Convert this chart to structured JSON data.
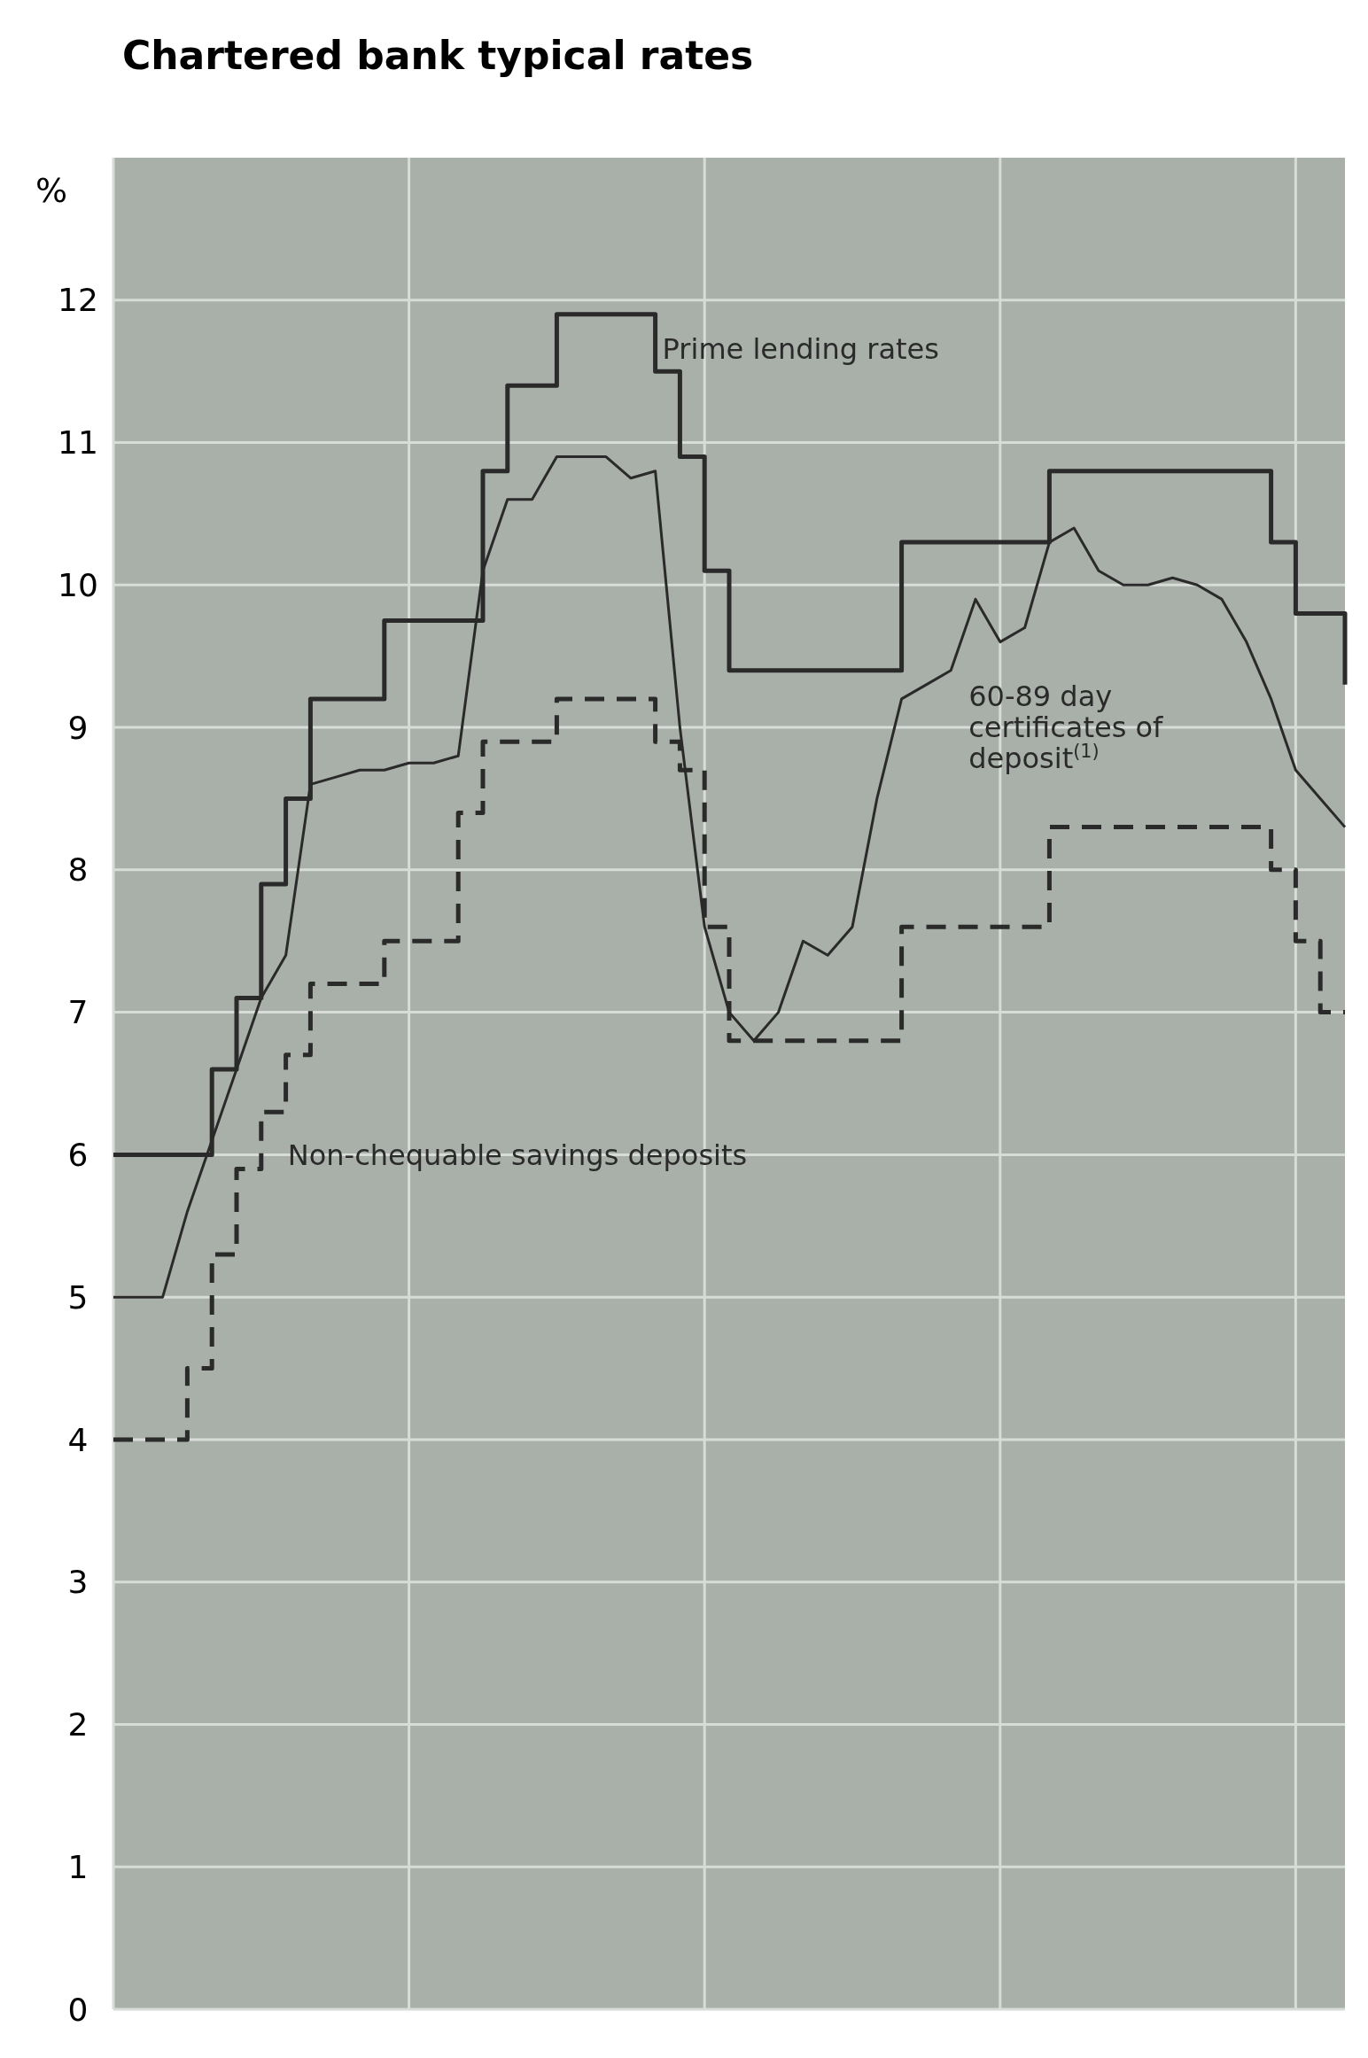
{
  "chart_data": {
    "type": "line",
    "title": "Chartered bank typical rates",
    "ylabel": "%",
    "categories": [
      null,
      null,
      null,
      null,
      null,
      null,
      null,
      null,
      null,
      null,
      null,
      null,
      null,
      null,
      null,
      null,
      null,
      null,
      null,
      null,
      null,
      null,
      null,
      null,
      null,
      null,
      null,
      null,
      null,
      null,
      null,
      null,
      null,
      null,
      null,
      null,
      null,
      null,
      null,
      null,
      null,
      null,
      null,
      null,
      null,
      null,
      null,
      null,
      null,
      null,
      null
    ],
    "ylim": [
      0,
      13
    ],
    "yticks": [
      0,
      1,
      2,
      3,
      4,
      5,
      6,
      7,
      8,
      9,
      10,
      11,
      12
    ],
    "grid": true,
    "series": [
      {
        "name": "Prime lending rates",
        "type": "step",
        "color": "#2a2a2a",
        "line_style": "solid",
        "values": [
          6.0,
          6.0,
          6.0,
          6.0,
          6.6,
          7.1,
          7.9,
          8.5,
          9.2,
          9.2,
          9.2,
          9.75,
          9.75,
          9.75,
          9.75,
          10.8,
          11.4,
          11.4,
          11.9,
          11.9,
          11.9,
          11.9,
          11.5,
          10.9,
          10.1,
          9.4,
          9.4,
          9.4,
          9.4,
          9.4,
          9.4,
          9.4,
          10.3,
          10.3,
          10.3,
          10.3,
          10.3,
          10.3,
          10.8,
          10.8,
          10.8,
          10.8,
          10.8,
          10.8,
          10.8,
          10.8,
          10.8,
          10.3,
          9.8,
          9.8,
          9.3
        ]
      },
      {
        "name": "60-89 day certificates of deposit$^{(1)}$",
        "type": "line",
        "color": "#2a2a2a",
        "line_style": "solid",
        "values": [
          5.0,
          5.0,
          5.0,
          5.6,
          6.1,
          6.6,
          7.1,
          7.4,
          8.6,
          8.65,
          8.7,
          8.7,
          8.75,
          8.75,
          8.8,
          10.1,
          10.6,
          10.6,
          10.9,
          10.9,
          10.9,
          10.75,
          10.8,
          9.0,
          7.6,
          7.0,
          6.8,
          7.0,
          7.5,
          7.4,
          7.6,
          8.5,
          9.2,
          9.3,
          9.4,
          9.9,
          9.6,
          9.7,
          10.3,
          10.4,
          10.1,
          10.0,
          10.0,
          10.05,
          10.0,
          9.9,
          9.6,
          9.2,
          8.7,
          8.5,
          8.3
        ]
      },
      {
        "name": "Non-chequable savings deposits",
        "type": "step",
        "color": "#2a2a2a",
        "line_style": "dashed",
        "values": [
          4.0,
          4.0,
          4.0,
          4.5,
          5.3,
          5.9,
          6.3,
          6.7,
          7.2,
          7.2,
          7.2,
          7.5,
          7.5,
          7.5,
          8.4,
          8.9,
          8.9,
          8.9,
          9.2,
          9.2,
          9.2,
          9.2,
          8.9,
          8.7,
          7.6,
          6.8,
          6.8,
          6.8,
          6.8,
          6.8,
          6.8,
          6.8,
          7.6,
          7.6,
          7.6,
          7.6,
          7.6,
          7.6,
          8.3,
          8.3,
          8.3,
          8.3,
          8.3,
          8.3,
          8.3,
          8.3,
          8.3,
          8.0,
          7.5,
          7.0,
          7.0
        ]
      }
    ]
  }
}
